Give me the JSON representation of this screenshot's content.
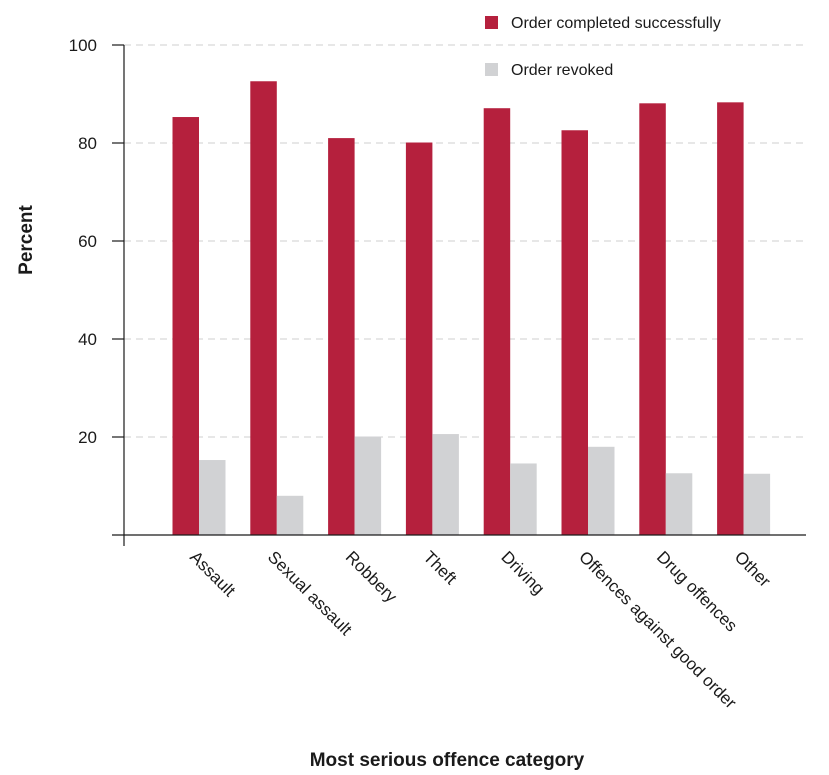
{
  "chart_data": {
    "type": "bar",
    "categories": [
      "Assault",
      "Sexual assault",
      "Robbery",
      "Theft",
      "Driving",
      "Offences against good order",
      "Drug offences",
      "Other"
    ],
    "series": [
      {
        "name": "Order completed successfully",
        "color": "#b5203d",
        "values": [
          85.3,
          92.6,
          81.0,
          80.1,
          87.1,
          82.6,
          88.1,
          88.3
        ]
      },
      {
        "name": "Order revoked",
        "color": "#d1d2d4",
        "values": [
          15.3,
          8.0,
          20.1,
          20.6,
          14.6,
          18.0,
          12.6,
          12.5
        ]
      }
    ],
    "title": "",
    "xlabel": "Most serious offence category",
    "ylabel": "Percent",
    "ylim": [
      0,
      100
    ],
    "yticks": [
      "20",
      "40",
      "60",
      "80",
      "100"
    ],
    "ytick_values": [
      20,
      40,
      60,
      80,
      100
    ],
    "grid": true,
    "legend_position": "top-right"
  }
}
